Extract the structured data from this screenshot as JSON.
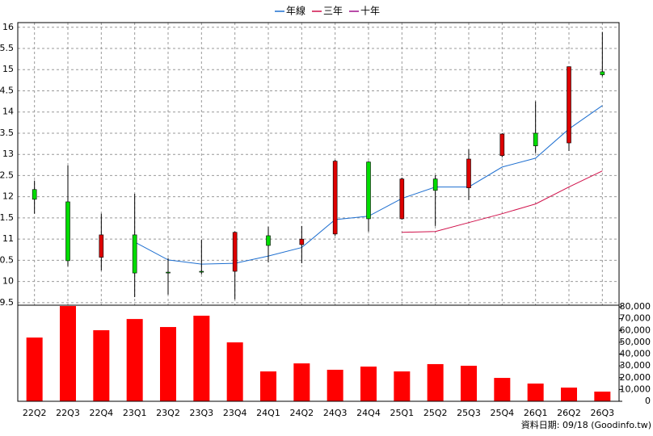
{
  "chart_data": {
    "type": "candlestick",
    "categories": [
      "22Q2",
      "22Q3",
      "22Q4",
      "23Q1",
      "23Q2",
      "23Q3",
      "23Q4",
      "24Q1",
      "24Q2",
      "24Q3",
      "24Q4",
      "25Q1",
      "25Q2",
      "25Q3",
      "25Q4",
      "26Q1",
      "26Q2",
      "26Q3"
    ],
    "open": [
      12.17,
      11.88,
      10.57,
      11.1,
      10.22,
      10.24,
      10.24,
      11.08,
      10.87,
      11.12,
      12.82,
      11.48,
      12.42,
      12.21,
      12.97,
      13.5,
      13.27,
      14.95
    ],
    "high": [
      12.38,
      12.74,
      11.6,
      12.07,
      10.55,
      10.99,
      11.18,
      11.29,
      11.31,
      12.87,
      12.84,
      12.45,
      12.51,
      13.12,
      13.5,
      14.25,
      15.07,
      15.89
    ],
    "low": [
      11.6,
      10.36,
      10.26,
      9.63,
      9.69,
      10.17,
      9.58,
      10.45,
      10.43,
      11.08,
      11.18,
      11.46,
      11.31,
      11.92,
      12.93,
      13.03,
      13.08,
      14.84
    ],
    "close": [
      11.94,
      10.49,
      11.1,
      10.2,
      10.2,
      10.22,
      11.16,
      10.85,
      11.0,
      12.84,
      11.48,
      12.42,
      12.15,
      12.89,
      13.48,
      13.2,
      15.07,
      14.88
    ],
    "up_color": "#dd0000",
    "down_color": "#00dd00",
    "series": [
      {
        "name": "年線",
        "color": "#1e6fd0",
        "values": [
          null,
          null,
          null,
          10.93,
          10.51,
          10.41,
          10.43,
          10.6,
          10.8,
          11.46,
          11.54,
          11.96,
          12.23,
          12.23,
          12.7,
          12.91,
          13.6,
          14.15
        ]
      },
      {
        "name": "三年",
        "color": "#d0104a",
        "values": [
          null,
          null,
          null,
          null,
          null,
          null,
          null,
          null,
          null,
          null,
          null,
          11.16,
          11.18,
          11.39,
          11.6,
          11.83,
          12.23,
          12.61
        ]
      },
      {
        "name": "十年",
        "color": "#a0108a",
        "values": [
          null,
          null,
          null,
          null,
          null,
          null,
          null,
          null,
          null,
          null,
          null,
          null,
          null,
          null,
          null,
          null,
          null,
          null
        ]
      }
    ],
    "volume": {
      "color": "#ff0000",
      "axis": "y2",
      "values": [
        54000,
        80700,
        60200,
        69700,
        62900,
        72500,
        49900,
        25300,
        32100,
        26700,
        29400,
        25300,
        31500,
        30100,
        19800,
        15000,
        11600,
        8200
      ]
    },
    "ylim": [
      9.44,
      16.11
    ],
    "yticks": [
      16,
      {
        "value": 15.5,
        "label": "5.5"
      },
      15,
      {
        "value": 14.5,
        "label": "4.5"
      },
      14,
      {
        "value": 13.5,
        "label": "3.5"
      },
      13,
      {
        "value": 12.5,
        "label": "2.5"
      },
      12,
      {
        "value": 11.5,
        "label": "1.5"
      },
      11,
      {
        "value": 10.5,
        "label": "0.5"
      },
      10,
      9.5
    ],
    "y2lim": [
      0,
      81400
    ],
    "y2ticks": [
      {
        "value": 80000,
        "label": "80,000"
      },
      {
        "value": 70000,
        "label": "70,000"
      },
      {
        "value": 60000,
        "label": "60,000"
      },
      {
        "value": 50000,
        "label": "50,000"
      },
      {
        "value": 40000,
        "label": "40,000"
      },
      {
        "value": 30000,
        "label": "30,000"
      },
      {
        "value": 20000,
        "label": "20,000"
      },
      {
        "value": 10000,
        "label": "10,000"
      },
      0
    ],
    "grid": true,
    "source": "資料日期: 09/18 (Goodinfo.tw)"
  }
}
